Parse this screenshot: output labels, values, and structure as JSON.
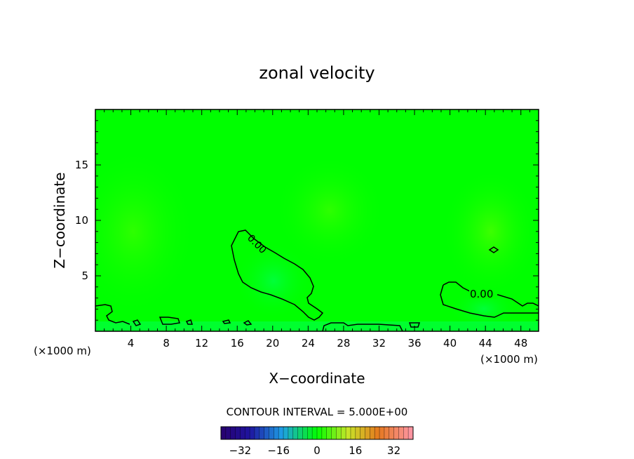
{
  "chart_data": {
    "type": "heatmap",
    "title": "zonal velocity",
    "xlabel": "X−coordinate",
    "ylabel": "Z−coordinate",
    "x_unit_left": "(×1000 m)",
    "x_unit_right": "(×1000 m)",
    "xlim": [
      0,
      50
    ],
    "ylim": [
      0,
      20
    ],
    "x_ticks": [
      "4",
      "8",
      "12",
      "16",
      "20",
      "24",
      "28",
      "32",
      "36",
      "40",
      "44",
      "48"
    ],
    "y_ticks": [
      "5",
      "10",
      "15"
    ],
    "contour_interval_label": "CONTOUR INTERVAL = 5.000E+00",
    "contour_label": "0.00",
    "colorbar": {
      "range": [
        -40,
        40
      ],
      "ticks": [
        "−32",
        "−16",
        "0",
        "16",
        "32"
      ],
      "tick_values": [
        -32,
        -16,
        0,
        16,
        32
      ]
    },
    "field_description_regions": [
      {
        "name": "zero-contour-center",
        "x": [
          15.3,
          25.8
        ],
        "z": [
          1.2,
          9.1
        ],
        "value": -1.5
      },
      {
        "name": "zero-contour-right",
        "x": [
          38.8,
          50
        ],
        "z": [
          0.3,
          4.4
        ],
        "value": -1.5
      },
      {
        "name": "background",
        "value": 2
      }
    ],
    "colors": {
      "background_field": "#00ff00",
      "positive_tint": "#33ff00",
      "negative_tint": "#00ff33",
      "contour": "#000000"
    }
  }
}
